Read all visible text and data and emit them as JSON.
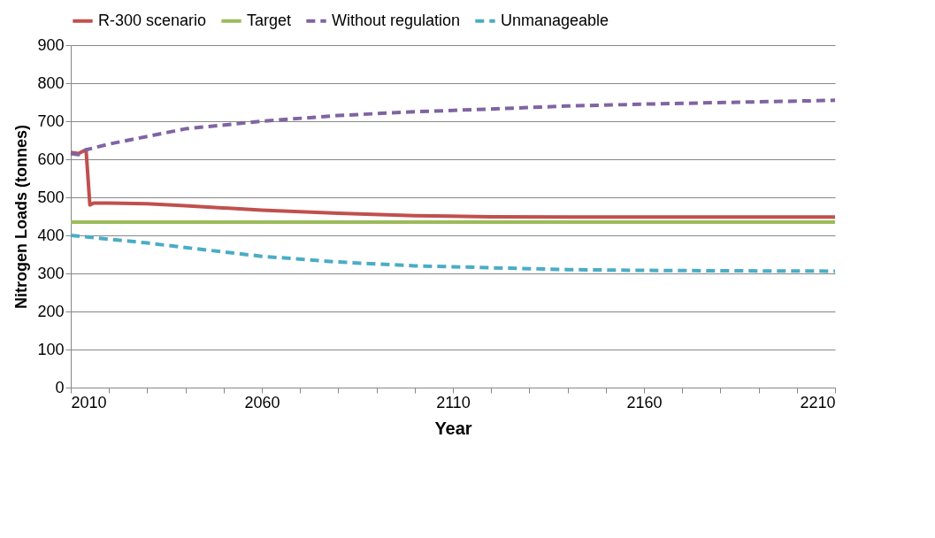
{
  "chart_data": {
    "type": "line",
    "xlabel": "Year",
    "ylabel": "Nitrogen Loads (tonnes)",
    "xlim": [
      2010,
      2210
    ],
    "xticks": [
      2010,
      {
        "value": 2020,
        "label": null
      },
      {
        "value": 2030,
        "label": null
      },
      {
        "value": 2040,
        "label": null
      },
      {
        "value": 2050,
        "label": null
      },
      2060,
      {
        "value": 2070,
        "label": null
      },
      {
        "value": 2080,
        "label": null
      },
      {
        "value": 2090,
        "label": null
      },
      {
        "value": 2100,
        "label": null
      },
      2110,
      {
        "value": 2120,
        "label": null
      },
      {
        "value": 2130,
        "label": null
      },
      {
        "value": 2140,
        "label": null
      },
      {
        "value": 2150,
        "label": null
      },
      2160,
      {
        "value": 2170,
        "label": null
      },
      {
        "value": 2180,
        "label": null
      },
      {
        "value": 2190,
        "label": null
      },
      {
        "value": 2200,
        "label": null
      },
      2210
    ],
    "ylim": [
      0,
      900
    ],
    "yticks": [
      0,
      100,
      200,
      300,
      400,
      500,
      600,
      700,
      800,
      900
    ],
    "grid": "y",
    "legend": "top",
    "series": [
      {
        "name": "R-300 scenario",
        "color": "#c0504d",
        "line_style": "solid",
        "x": [
          2010,
          2012,
          2014,
          2015,
          2016,
          2020,
          2030,
          2040,
          2060,
          2080,
          2100,
          2120,
          2140,
          2160,
          2180,
          2210
        ],
        "values": [
          618,
          615,
          625,
          480,
          485,
          485,
          483,
          478,
          466,
          458,
          452,
          449,
          448,
          448,
          448,
          448
        ]
      },
      {
        "name": "Target",
        "color": "#9bbb59",
        "line_style": "solid",
        "x": [
          2010,
          2210
        ],
        "values": [
          435,
          435
        ]
      },
      {
        "name": "Without regulation",
        "color": "#8064a2",
        "line_style": "dashed",
        "x": [
          2010,
          2012,
          2014,
          2016,
          2020,
          2030,
          2040,
          2060,
          2080,
          2100,
          2120,
          2140,
          2160,
          2185,
          2210
        ],
        "values": [
          615,
          612,
          625,
          630,
          640,
          660,
          680,
          700,
          715,
          725,
          732,
          740,
          745,
          750,
          755
        ]
      },
      {
        "name": "Unmanageable",
        "color": "#4bacc6",
        "line_style": "dashed",
        "x": [
          2010,
          2020,
          2030,
          2040,
          2060,
          2080,
          2100,
          2120,
          2140,
          2160,
          2180,
          2210
        ],
        "values": [
          400,
          390,
          380,
          368,
          345,
          330,
          320,
          315,
          310,
          308,
          307,
          306
        ]
      }
    ]
  }
}
